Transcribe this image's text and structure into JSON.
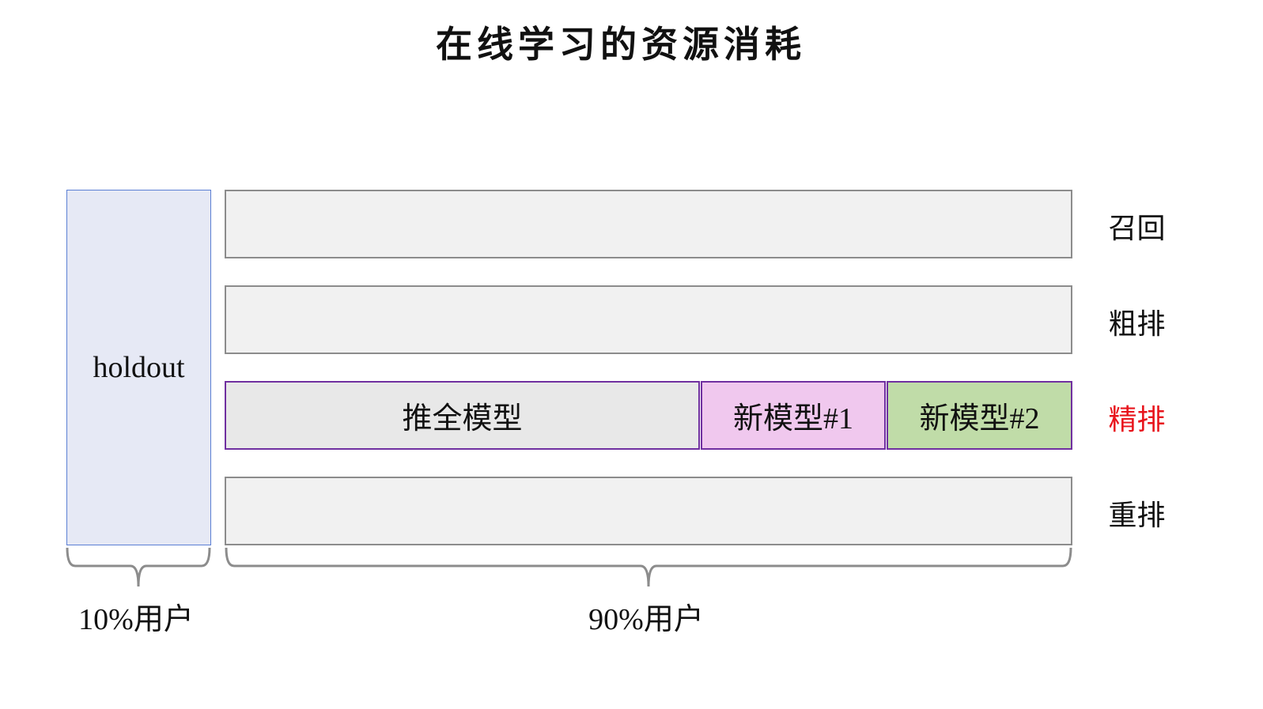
{
  "title": "在线学习的资源消耗",
  "holdout": {
    "label": "holdout",
    "color": "#e6e9f5"
  },
  "stages": [
    {
      "label": "召回",
      "color": "#111111"
    },
    {
      "label": "粗排",
      "color": "#111111"
    },
    {
      "label": "精排",
      "color": "#e8141c"
    },
    {
      "label": "重排",
      "color": "#111111"
    }
  ],
  "ranking_segments": [
    {
      "label": "推全模型",
      "color": "#e8e8e8"
    },
    {
      "label": "新模型#1",
      "color": "#f0c8ee"
    },
    {
      "label": "新模型#2",
      "color": "#c0dca8"
    }
  ],
  "braces": [
    {
      "label": "10%用户"
    },
    {
      "label": "90%用户"
    }
  ]
}
